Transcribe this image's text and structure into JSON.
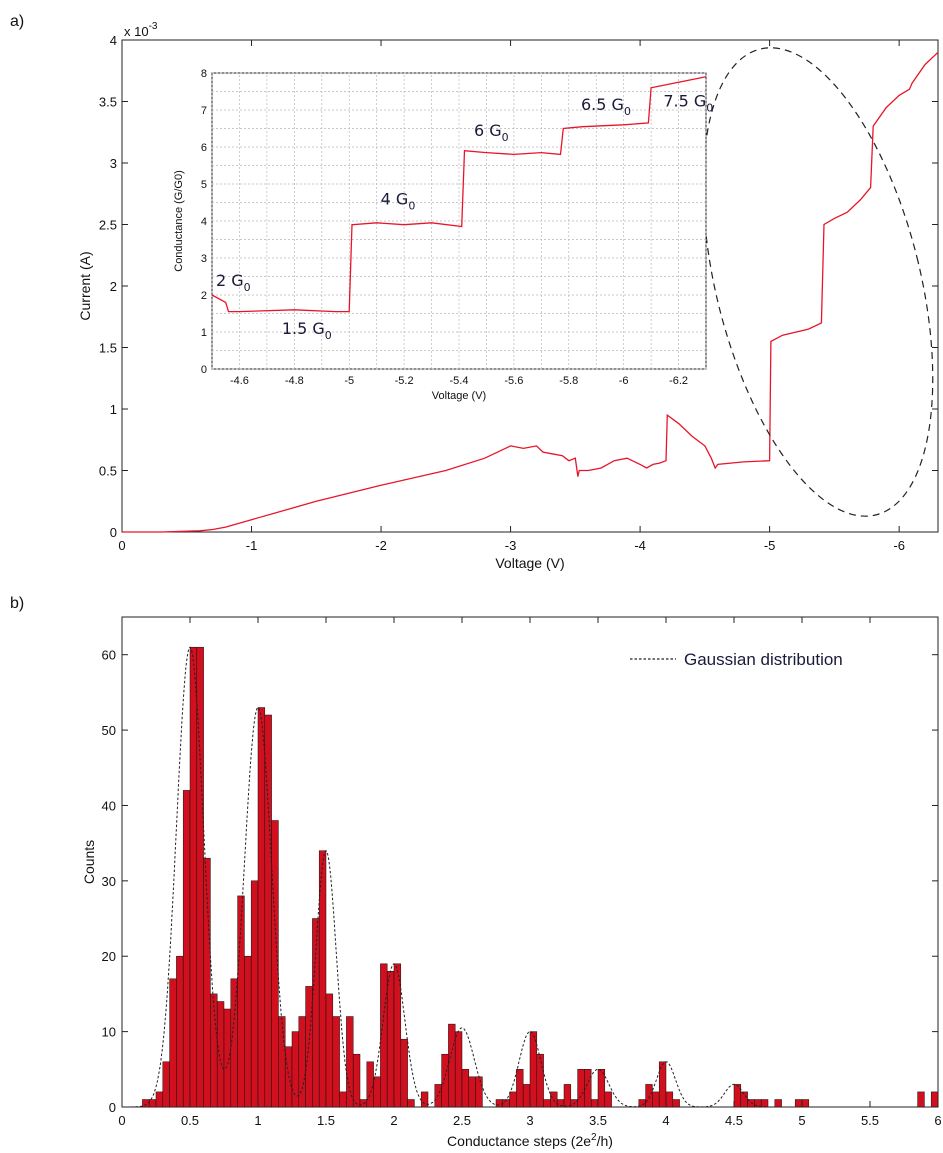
{
  "colors": {
    "curve": "#e8152a",
    "bar": "#d0101f",
    "gauss": "#222222",
    "grid": "#b8b8b8"
  },
  "panels": {
    "a": "a)",
    "b": "b)"
  },
  "chart_data": [
    {
      "id": "a-main",
      "type": "line",
      "xlabel": "Voltage (V)",
      "ylabel": "Current (A)",
      "exponent": "x 10",
      "exponent_power": "-3",
      "xlim": [
        0,
        -6.3
      ],
      "ylim": [
        0,
        4
      ],
      "x_ticks": [
        0,
        -1,
        -2,
        -3,
        -4,
        -5,
        -6
      ],
      "y_ticks": [
        0,
        0.5,
        1,
        1.5,
        2,
        2.5,
        3,
        3.5,
        4
      ],
      "series": [
        {
          "x": [
            0,
            -0.3,
            -0.6,
            -0.7,
            -0.8,
            -1.0,
            -1.5,
            -2.0,
            -2.5,
            -2.8,
            -3.0,
            -3.1,
            -3.2,
            -3.25,
            -3.3,
            -3.4,
            -3.45,
            -3.5,
            -3.52,
            -3.53,
            -3.6,
            -3.7,
            -3.8,
            -3.9,
            -4.0,
            -4.05,
            -4.1,
            -4.15,
            -4.2,
            -4.21,
            -4.3,
            -4.4,
            -4.5,
            -4.55,
            -4.58,
            -4.6,
            -4.8,
            -5.0,
            -5.01,
            -5.1,
            -5.3,
            -5.4,
            -5.42,
            -5.5,
            -5.6,
            -5.7,
            -5.78,
            -5.8,
            -5.9,
            -6.0,
            -6.08,
            -6.1,
            -6.2,
            -6.3
          ],
          "y": [
            0,
            0,
            0.01,
            0.02,
            0.04,
            0.1,
            0.25,
            0.38,
            0.5,
            0.6,
            0.7,
            0.68,
            0.7,
            0.65,
            0.64,
            0.62,
            0.58,
            0.6,
            0.45,
            0.5,
            0.5,
            0.52,
            0.58,
            0.6,
            0.55,
            0.52,
            0.55,
            0.56,
            0.58,
            0.95,
            0.88,
            0.78,
            0.7,
            0.6,
            0.52,
            0.55,
            0.57,
            0.58,
            1.55,
            1.6,
            1.65,
            1.7,
            2.5,
            2.55,
            2.6,
            2.7,
            2.8,
            3.3,
            3.45,
            3.55,
            3.6,
            3.65,
            3.8,
            3.9
          ]
        }
      ],
      "annotation": "dashed ellipse around steps between -4.5 V and -6.3 V"
    },
    {
      "id": "a-inset",
      "type": "line",
      "xlabel": "Voltage (V)",
      "ylabel": "Conductance (G/G0)",
      "xlim": [
        -4.5,
        -6.3
      ],
      "ylim": [
        0,
        8
      ],
      "x_ticks": [
        -4.6,
        -4.8,
        -5,
        -5.2,
        -5.4,
        -5.6,
        -5.8,
        -6,
        -6.2
      ],
      "y_ticks": [
        0,
        1,
        2,
        3,
        4,
        5,
        6,
        7,
        8
      ],
      "grid": true,
      "series": [
        {
          "x": [
            -4.5,
            -4.55,
            -4.56,
            -4.6,
            -4.8,
            -4.95,
            -5.0,
            -5.01,
            -5.1,
            -5.2,
            -5.3,
            -5.41,
            -5.42,
            -5.5,
            -5.6,
            -5.7,
            -5.77,
            -5.78,
            -5.85,
            -6.0,
            -6.09,
            -6.1,
            -6.2,
            -6.3
          ],
          "y": [
            2.0,
            1.8,
            1.55,
            1.55,
            1.6,
            1.55,
            1.55,
            3.9,
            3.95,
            3.9,
            3.95,
            3.85,
            5.9,
            5.85,
            5.8,
            5.85,
            5.8,
            6.5,
            6.55,
            6.6,
            6.65,
            7.6,
            7.75,
            7.9
          ]
        }
      ],
      "labels": [
        {
          "text": "2 G",
          "sub": "0",
          "x": -4.5,
          "y": 2.25
        },
        {
          "text": "1.5 G",
          "sub": "0",
          "x": -4.74,
          "y": 0.95
        },
        {
          "text": "4 G",
          "sub": "0",
          "x": -5.1,
          "y": 4.45
        },
        {
          "text": "6 G",
          "sub": "0",
          "x": -5.44,
          "y": 6.3
        },
        {
          "text": "6.5 G",
          "sub": "0",
          "x": -5.83,
          "y": 7.0
        },
        {
          "text": "7.5 G",
          "sub": "0",
          "x": -6.13,
          "y": 7.1
        }
      ]
    },
    {
      "id": "b",
      "type": "bar",
      "xlabel": "Conductance steps (2e",
      "xlabel_sup": "2",
      "xlabel_tail": "/h)",
      "ylabel": "Counts",
      "xlim": [
        0,
        6
      ],
      "ylim": [
        0,
        65
      ],
      "bin_width": 0.05,
      "x_ticks": [
        0,
        0.5,
        1,
        1.5,
        2,
        2.5,
        3,
        3.5,
        4,
        4.5,
        5,
        5.5,
        6
      ],
      "y_ticks": [
        0,
        10,
        20,
        30,
        40,
        50,
        60
      ],
      "bins_start": [
        0.15,
        0.2,
        0.25,
        0.3,
        0.35,
        0.4,
        0.45,
        0.5,
        0.55,
        0.6,
        0.65,
        0.7,
        0.75,
        0.8,
        0.85,
        0.9,
        0.95,
        1.0,
        1.05,
        1.1,
        1.15,
        1.2,
        1.25,
        1.3,
        1.35,
        1.4,
        1.45,
        1.5,
        1.55,
        1.6,
        1.65,
        1.7,
        1.75,
        1.8,
        1.85,
        1.9,
        1.95,
        2.0,
        2.05,
        2.1,
        2.15,
        2.2,
        2.25,
        2.3,
        2.35,
        2.4,
        2.45,
        2.5,
        2.55,
        2.6,
        2.65,
        2.7,
        2.75,
        2.8,
        2.85,
        2.9,
        2.95,
        3.0,
        3.05,
        3.1,
        3.15,
        3.2,
        3.25,
        3.3,
        3.35,
        3.4,
        3.45,
        3.5,
        3.55,
        3.6,
        3.8,
        3.85,
        3.9,
        3.95,
        4.0,
        4.05,
        4.45,
        4.5,
        4.55,
        4.6,
        4.65,
        4.7,
        4.75,
        4.8,
        4.85,
        4.95,
        5.0,
        5.85,
        5.95
      ],
      "counts": [
        1,
        1,
        2,
        6,
        17,
        20,
        42,
        61,
        61,
        33,
        15,
        14,
        13,
        17,
        28,
        20,
        30,
        53,
        52,
        38,
        12,
        8,
        10,
        12,
        16,
        25,
        34,
        15,
        12,
        2,
        12,
        7,
        1,
        6,
        4,
        19,
        18,
        19,
        9,
        1,
        0,
        2,
        0,
        3,
        7,
        11,
        10,
        5,
        4,
        4,
        0,
        0,
        1,
        1,
        2,
        5,
        3,
        10,
        7,
        1,
        2,
        1,
        3,
        1,
        5,
        5,
        1,
        5,
        2,
        0,
        1,
        3,
        2,
        6,
        2,
        1,
        0,
        3,
        2,
        1,
        1,
        1,
        0,
        1,
        0,
        1,
        1,
        2,
        2
      ],
      "gaussians": [
        {
          "mu": 0.5,
          "sigma": 0.1,
          "amp": 61
        },
        {
          "mu": 1.0,
          "sigma": 0.1,
          "amp": 53
        },
        {
          "mu": 1.5,
          "sigma": 0.075,
          "amp": 34
        },
        {
          "mu": 2.0,
          "sigma": 0.08,
          "amp": 19
        },
        {
          "mu": 2.5,
          "sigma": 0.09,
          "amp": 10.5
        },
        {
          "mu": 3.0,
          "sigma": 0.08,
          "amp": 10
        },
        {
          "mu": 3.5,
          "sigma": 0.08,
          "amp": 5
        },
        {
          "mu": 4.0,
          "sigma": 0.07,
          "amp": 6
        },
        {
          "mu": 4.5,
          "sigma": 0.07,
          "amp": 3
        }
      ],
      "legend": "Gaussian distribution",
      "legend_position": "top-right"
    }
  ]
}
